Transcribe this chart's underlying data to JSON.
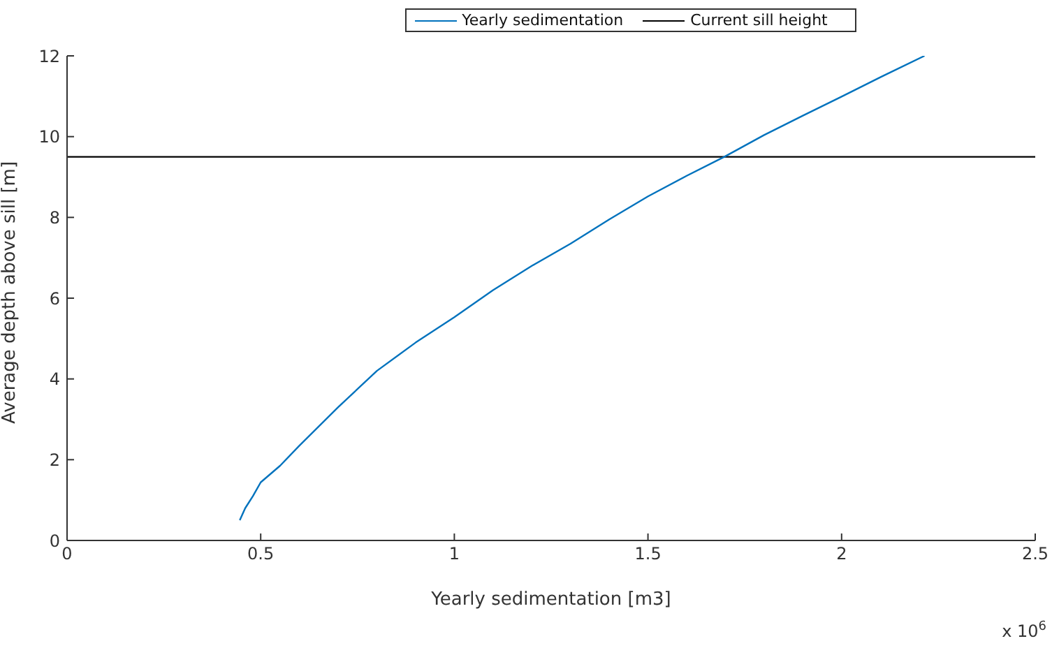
{
  "chart_data": {
    "type": "line",
    "xlabel": "Yearly sedimentation [m3]",
    "ylabel": "Average depth above sill [m]",
    "x": [
      0.446,
      0.46,
      0.48,
      0.5,
      0.55,
      0.6,
      0.7,
      0.8,
      0.9,
      1.0,
      1.1,
      1.2,
      1.3,
      1.4,
      1.5,
      1.6,
      1.697,
      1.8,
      1.9,
      2.0,
      2.1,
      2.214
    ],
    "series": [
      {
        "name": "Yearly sedimentation",
        "color": "#0072bd",
        "values": [
          0.5,
          0.8,
          1.1,
          1.44,
          1.85,
          2.35,
          3.3,
          4.2,
          4.9,
          5.53,
          6.2,
          6.8,
          7.35,
          7.95,
          8.52,
          9.03,
          9.5,
          10.04,
          10.52,
          10.99,
          11.47,
          12
        ]
      }
    ],
    "ref_lines": [
      {
        "axis": "y",
        "value": 9.5,
        "label": "Current sill height",
        "color": "#000000"
      }
    ],
    "xlim": [
      0,
      2.5
    ],
    "xticks": [
      0,
      0.5,
      1,
      1.5,
      2,
      2.5
    ],
    "ylim": [
      0,
      12
    ],
    "yticks": [
      0,
      2,
      4,
      6,
      8,
      10,
      12
    ],
    "annotations": [
      "x 10$^{6}$"
    ],
    "legend": "top",
    "grid": false,
    "marker": "none",
    "line_style": "solid"
  }
}
